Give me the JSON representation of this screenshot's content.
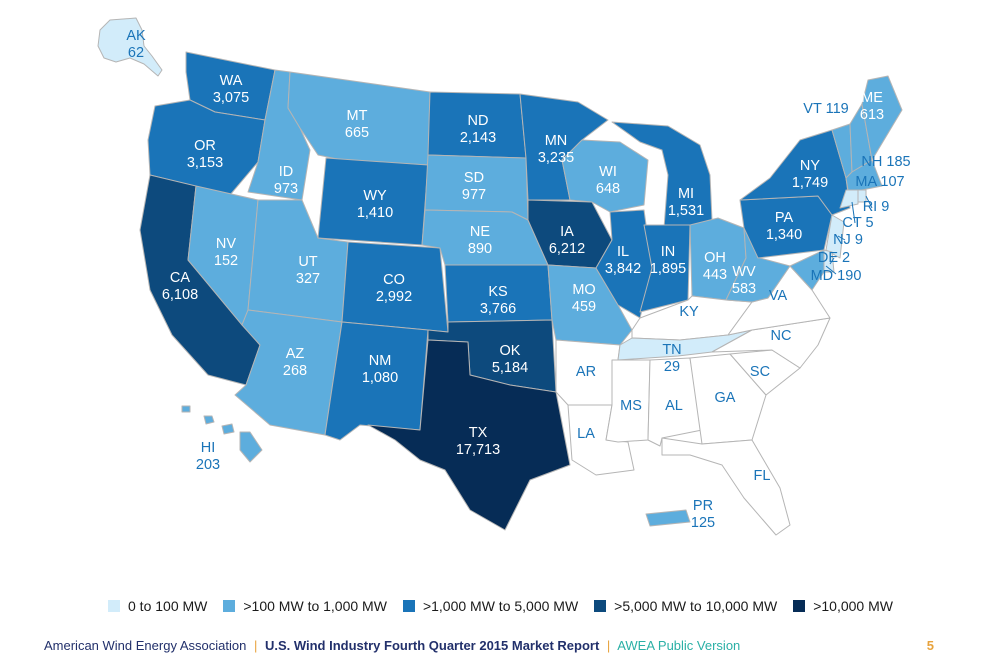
{
  "colors": {
    "0 to 100 MW": "#d2ecfa",
    ">100 MW to 1,000 MW": "#5daddd",
    ">1,000 MW to 5,000 MW": "#1a74b8",
    ">5,000 MW to 10,000 MW": "#0d4a7d",
    ">10,000 MW": "#062c56",
    "none": "#ffffff"
  },
  "legend": [
    "0 to 100 MW",
    ">100 MW to 1,000 MW",
    ">1,000 MW to 5,000 MW",
    ">5,000 MW to 10,000 MW",
    ">10,000 MW"
  ],
  "states": [
    {
      "abbr": "AK",
      "value": "62",
      "cat": "0 to 100 MW"
    },
    {
      "abbr": "WA",
      "value": "3,075",
      "cat": ">1,000 MW to 5,000 MW"
    },
    {
      "abbr": "OR",
      "value": "3,153",
      "cat": ">1,000 MW to 5,000 MW"
    },
    {
      "abbr": "CA",
      "value": "6,108",
      "cat": ">5,000 MW to 10,000 MW"
    },
    {
      "abbr": "NV",
      "value": "152",
      "cat": ">100 MW to 1,000 MW"
    },
    {
      "abbr": "ID",
      "value": "973",
      "cat": ">100 MW to 1,000 MW"
    },
    {
      "abbr": "MT",
      "value": "665",
      "cat": ">100 MW to 1,000 MW"
    },
    {
      "abbr": "WY",
      "value": "1,410",
      "cat": ">1,000 MW to 5,000 MW"
    },
    {
      "abbr": "UT",
      "value": "327",
      "cat": ">100 MW to 1,000 MW"
    },
    {
      "abbr": "AZ",
      "value": "268",
      "cat": ">100 MW to 1,000 MW"
    },
    {
      "abbr": "CO",
      "value": "2,992",
      "cat": ">1,000 MW to 5,000 MW"
    },
    {
      "abbr": "NM",
      "value": "1,080",
      "cat": ">1,000 MW to 5,000 MW"
    },
    {
      "abbr": "ND",
      "value": "2,143",
      "cat": ">1,000 MW to 5,000 MW"
    },
    {
      "abbr": "SD",
      "value": "977",
      "cat": ">100 MW to 1,000 MW"
    },
    {
      "abbr": "NE",
      "value": "890",
      "cat": ">100 MW to 1,000 MW"
    },
    {
      "abbr": "KS",
      "value": "3,766",
      "cat": ">1,000 MW to 5,000 MW"
    },
    {
      "abbr": "OK",
      "value": "5,184",
      "cat": ">5,000 MW to 10,000 MW"
    },
    {
      "abbr": "TX",
      "value": "17,713",
      "cat": ">10,000 MW"
    },
    {
      "abbr": "MN",
      "value": "3,235",
      "cat": ">1,000 MW to 5,000 MW"
    },
    {
      "abbr": "IA",
      "value": "6,212",
      "cat": ">5,000 MW to 10,000 MW"
    },
    {
      "abbr": "MO",
      "value": "459",
      "cat": ">100 MW to 1,000 MW"
    },
    {
      "abbr": "AR",
      "value": "",
      "cat": "none"
    },
    {
      "abbr": "LA",
      "value": "",
      "cat": "none"
    },
    {
      "abbr": "WI",
      "value": "648",
      "cat": ">100 MW to 1,000 MW"
    },
    {
      "abbr": "IL",
      "value": "3,842",
      "cat": ">1,000 MW to 5,000 MW"
    },
    {
      "abbr": "MI",
      "value": "1,531",
      "cat": ">1,000 MW to 5,000 MW"
    },
    {
      "abbr": "IN",
      "value": "1,895",
      "cat": ">1,000 MW to 5,000 MW"
    },
    {
      "abbr": "OH",
      "value": "443",
      "cat": ">100 MW to 1,000 MW"
    },
    {
      "abbr": "KY",
      "value": "",
      "cat": "none"
    },
    {
      "abbr": "TN",
      "value": "29",
      "cat": "0 to 100 MW"
    },
    {
      "abbr": "MS",
      "value": "",
      "cat": "none"
    },
    {
      "abbr": "AL",
      "value": "",
      "cat": "none"
    },
    {
      "abbr": "GA",
      "value": "",
      "cat": "none"
    },
    {
      "abbr": "FL",
      "value": "",
      "cat": "none"
    },
    {
      "abbr": "SC",
      "value": "",
      "cat": "none"
    },
    {
      "abbr": "NC",
      "value": "",
      "cat": "none"
    },
    {
      "abbr": "VA",
      "value": "",
      "cat": "none"
    },
    {
      "abbr": "WV",
      "value": "583",
      "cat": ">100 MW to 1,000 MW"
    },
    {
      "abbr": "PA",
      "value": "1,340",
      "cat": ">1,000 MW to 5,000 MW"
    },
    {
      "abbr": "NY",
      "value": "1,749",
      "cat": ">1,000 MW to 5,000 MW"
    },
    {
      "abbr": "VT",
      "value": "119",
      "cat": ">100 MW to 1,000 MW"
    },
    {
      "abbr": "NH",
      "value": "185",
      "cat": ">100 MW to 1,000 MW"
    },
    {
      "abbr": "ME",
      "value": "613",
      "cat": ">100 MW to 1,000 MW"
    },
    {
      "abbr": "MA",
      "value": "107",
      "cat": ">100 MW to 1,000 MW"
    },
    {
      "abbr": "RI",
      "value": "9",
      "cat": "0 to 100 MW"
    },
    {
      "abbr": "CT",
      "value": "5",
      "cat": "0 to 100 MW"
    },
    {
      "abbr": "NJ",
      "value": "9",
      "cat": "0 to 100 MW"
    },
    {
      "abbr": "DE",
      "value": "2",
      "cat": "0 to 100 MW"
    },
    {
      "abbr": "MD",
      "value": "190",
      "cat": ">100 MW to 1,000 MW"
    },
    {
      "abbr": "HI",
      "value": "203",
      "cat": ">100 MW to 1,000 MW"
    },
    {
      "abbr": "PR",
      "value": "125",
      "cat": ">100 MW to 1,000 MW"
    }
  ],
  "footer": {
    "org": "American Wind Energy Association",
    "separator": "|",
    "report": "U.S. Wind Industry Fourth Quarter 2015 Market Report",
    "version": "AWEA Public Version",
    "page": "5"
  }
}
